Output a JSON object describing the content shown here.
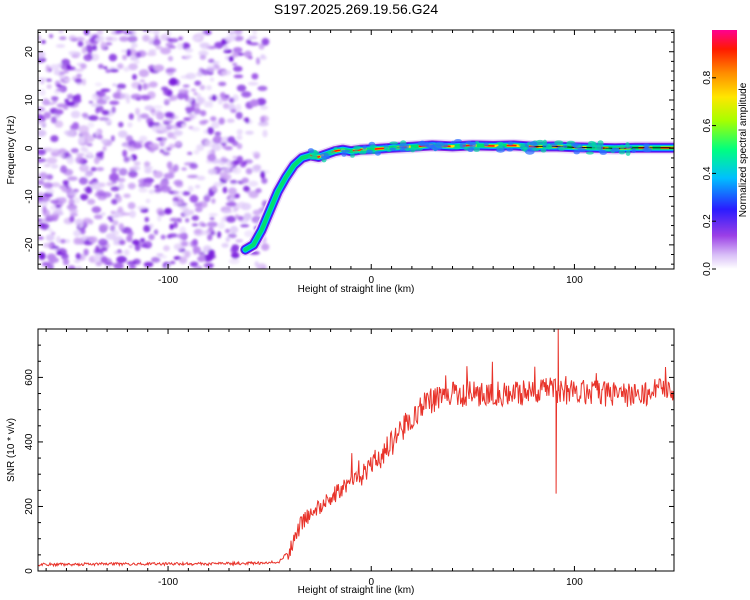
{
  "chart_data": [
    {
      "type": "heatmap",
      "title": "S197.2025.269.19.56.G24",
      "xlabel": "Height of straight line (km)",
      "ylabel": "Frequency (Hz)",
      "xlim": [
        -164,
        149
      ],
      "ylim": [
        -25,
        24.5
      ],
      "xticks": [
        -100,
        0,
        100
      ],
      "yticks": [
        -20,
        -10,
        0,
        10,
        20
      ],
      "colorbar": {
        "label": "Normalized spectral amplitude",
        "range": [
          0,
          1
        ],
        "ticks": [
          "0.0",
          "0.2",
          "0.4",
          "0.6",
          "0.8"
        ],
        "colors": [
          "#ffffff",
          "#d0b0f5",
          "#8a2be2",
          "#2020ff",
          "#00c8ff",
          "#00ff80",
          "#a0ff00",
          "#ffff00",
          "#ff8000",
          "#ff0000",
          "#ff0080"
        ]
      },
      "noise_region_x": [
        -164,
        -52
      ],
      "ridge": {
        "x": [
          -62,
          -58,
          -54,
          -50,
          -46,
          -42,
          -38,
          -34,
          -30,
          -26,
          -22,
          -18,
          -14,
          -10,
          -5,
          0,
          10,
          20,
          30,
          40,
          50,
          60,
          70,
          80,
          90,
          100,
          110,
          120,
          130,
          140,
          149
        ],
        "y": [
          -21,
          -20,
          -17,
          -13,
          -9,
          -6,
          -3.5,
          -2,
          -1.5,
          -1.8,
          -1.2,
          -0.6,
          -0.3,
          -0.6,
          -0.3,
          -0.2,
          0.1,
          0.3,
          0.6,
          0.4,
          0.6,
          0.5,
          0.6,
          0.3,
          0.4,
          0.2,
          0.1,
          0.0,
          0.1,
          0.1,
          0.1
        ]
      }
    },
    {
      "type": "line",
      "title": "",
      "xlabel": "Height of straight line (km)",
      "ylabel": "SNR (10 * v/v)",
      "xlim": [
        -164,
        149
      ],
      "ylim": [
        0,
        750
      ],
      "xticks": [
        -100,
        0,
        100
      ],
      "yticks": [
        0,
        200,
        400,
        600
      ],
      "color": "#e8332a",
      "series": [
        {
          "name": "SNR",
          "trend_x": [
            -164,
            -120,
            -80,
            -50,
            -45,
            -40,
            -35,
            -30,
            -25,
            -20,
            -15,
            -10,
            -5,
            0,
            5,
            10,
            15,
            20,
            25,
            30,
            40,
            50,
            60,
            70,
            80,
            90,
            100,
            110,
            120,
            130,
            140,
            149
          ],
          "trend_y": [
            20,
            22,
            22,
            25,
            30,
            70,
            140,
            175,
            200,
            225,
            250,
            270,
            300,
            325,
            355,
            395,
            440,
            480,
            510,
            530,
            545,
            550,
            548,
            550,
            555,
            560,
            550,
            555,
            545,
            550,
            555,
            560
          ],
          "spikes": [
            {
              "x": 92,
              "y": 750
            },
            {
              "x": 91,
              "y": 240
            }
          ]
        }
      ]
    }
  ]
}
